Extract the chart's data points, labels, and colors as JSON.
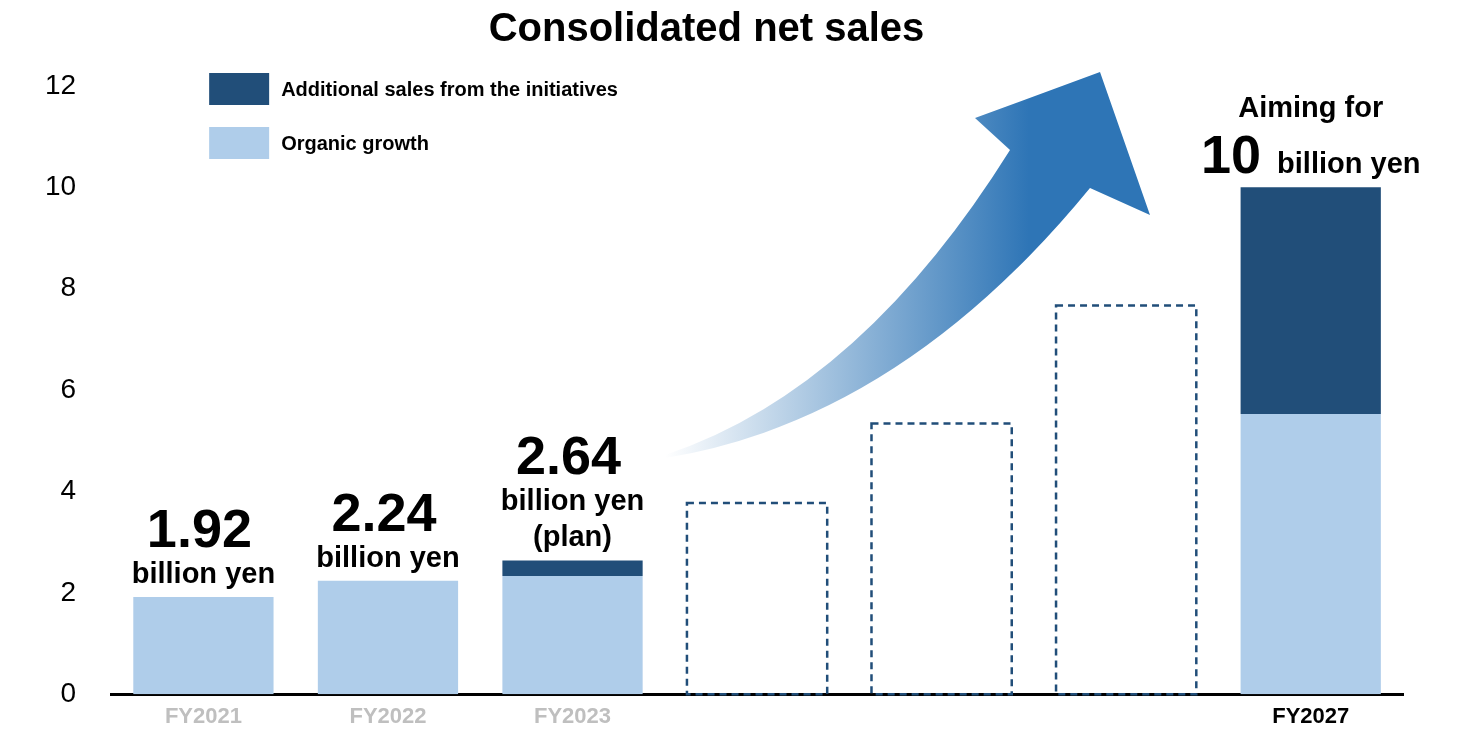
{
  "chart_data": {
    "type": "bar",
    "title": "Consolidated net sales",
    "categories": [
      "FY2021",
      "FY2022",
      "FY2023",
      null,
      null,
      null,
      "FY2027"
    ],
    "series": [
      {
        "name": "Organic growth",
        "color": "#afcdea",
        "values": [
          1.92,
          2.24,
          2.33,
          null,
          null,
          null,
          5.53
        ]
      },
      {
        "name": "Additional sales from the initiatives",
        "color": "#214e79",
        "values": [
          null,
          null,
          0.31,
          null,
          null,
          null,
          4.47
        ]
      },
      {
        "color": "#214e79",
        "line_style": "dashed",
        "values": [
          null,
          null,
          null,
          3.77,
          5.34,
          7.67,
          null
        ]
      }
    ],
    "stacked": true,
    "ylim": [
      0,
      12
    ],
    "yticks": [
      0,
      2,
      4,
      6,
      8,
      10,
      12
    ],
    "grid": false,
    "legend": "top left",
    "annotations": [
      {
        "text": "1.92\nbillion yen",
        "x": "FY2021",
        "y": 1.92
      },
      {
        "text": "2.24\nbillion yen",
        "x": "FY2022",
        "y": 2.24
      },
      {
        "text": "2.64\nbillion yen\n(plan)",
        "x": "FY2023",
        "y": 2.64
      },
      {
        "text": "Aiming for\n10 billion yen",
        "x": "FY2027",
        "y": 10
      }
    ]
  }
}
